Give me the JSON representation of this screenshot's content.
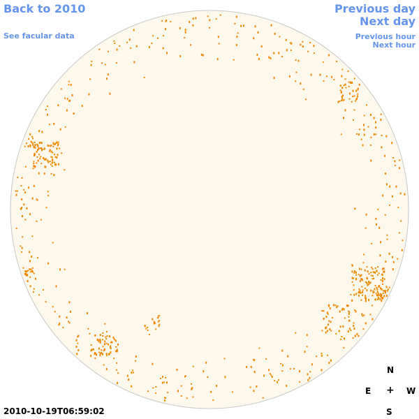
{
  "nav": {
    "back_label": "Back to 2010",
    "facular_label": "See facular data",
    "prev_day_label": "Previous day",
    "next_day_label": "Next day",
    "prev_hour_label": "Previous hour",
    "next_hour_label": "Next hour"
  },
  "timestamp": "2010-10-19T06:59:02",
  "compass": {
    "n": "N",
    "e": "E",
    "plus": "+",
    "w": "W",
    "s": "S"
  },
  "colors": {
    "link": "#6495ed",
    "disk_fill": "#fdf8ec",
    "disk_border": "#c8c8c8",
    "facula": "#ee8800"
  }
}
